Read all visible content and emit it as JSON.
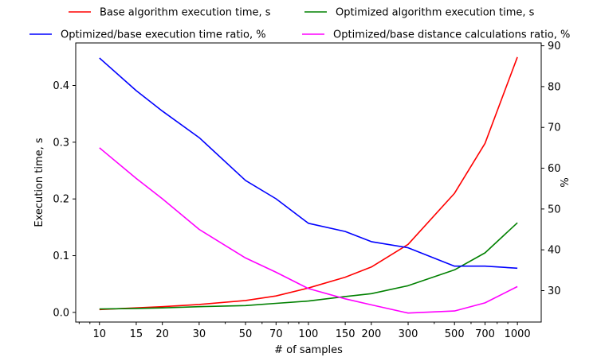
{
  "chart_data": {
    "type": "line",
    "x_scale": "log",
    "xlabel": "# of samples",
    "ylabel_left": "Execution time, s",
    "ylabel_right": "%",
    "ylim_left": [
      -0.017,
      0.475
    ],
    "ylim_right": [
      22.3,
      90.7
    ],
    "xlim": [
      7.7,
      1300
    ],
    "x_ticks": [
      10,
      15,
      20,
      30,
      50,
      70,
      100,
      150,
      200,
      300,
      500,
      700,
      1000
    ],
    "yticks_left": [
      0.0,
      0.1,
      0.2,
      0.3,
      0.4
    ],
    "yticks_left_labels": [
      "0.0",
      "0.1",
      "0.2",
      "0.3",
      "0.4"
    ],
    "yticks_right": [
      30,
      40,
      50,
      60,
      70,
      80,
      90
    ],
    "yticks_right_labels": [
      "30",
      "40",
      "50",
      "60",
      "70",
      "80",
      "90"
    ],
    "legend_placement": "top",
    "series": [
      {
        "name": "Base algorithm execution time, s",
        "axis": "left",
        "color": "#ff0000",
        "values": [
          0.005,
          0.008,
          0.01,
          0.014,
          0.021,
          0.029,
          0.043,
          0.062,
          0.08,
          0.12,
          0.21,
          0.298,
          0.45
        ]
      },
      {
        "name": "Optimized algorithm execution time, s",
        "axis": "left",
        "color": "#008000",
        "values": [
          0.006,
          0.007,
          0.008,
          0.01,
          0.012,
          0.016,
          0.02,
          0.028,
          0.033,
          0.047,
          0.075,
          0.105,
          0.158
        ]
      },
      {
        "name": "Optimized/base execution time ratio, %",
        "axis": "right",
        "color": "#0000ff",
        "values": [
          87.0,
          79.0,
          74.0,
          67.5,
          57.0,
          52.5,
          46.5,
          44.5,
          42.0,
          40.5,
          36.0,
          36.0,
          35.5
        ]
      },
      {
        "name": "Optimized/base distance calculations ratio, %",
        "axis": "right",
        "color": "#ff00ff",
        "values": [
          65.0,
          57.5,
          52.5,
          45.0,
          38.0,
          34.5,
          30.5,
          28.0,
          26.5,
          24.5,
          25.0,
          27.0,
          31.0
        ]
      }
    ]
  }
}
